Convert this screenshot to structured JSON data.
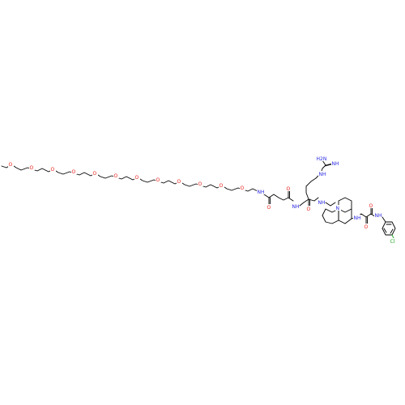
{
  "atom_labels": {
    "methoxy_o": "O",
    "peg_o": "O",
    "amide_nh": "NH",
    "carbonyl_o": "O",
    "nh": "NH",
    "h2n": "H2N",
    "imine_nh": "NH",
    "ring_n": "N",
    "cl": "Cl"
  },
  "colors": {
    "bond": "#000000",
    "oxygen": "#e8221a",
    "nitrogen": "#2a2ae0",
    "chlorine": "#1aa61a",
    "background": "#ffffff"
  }
}
